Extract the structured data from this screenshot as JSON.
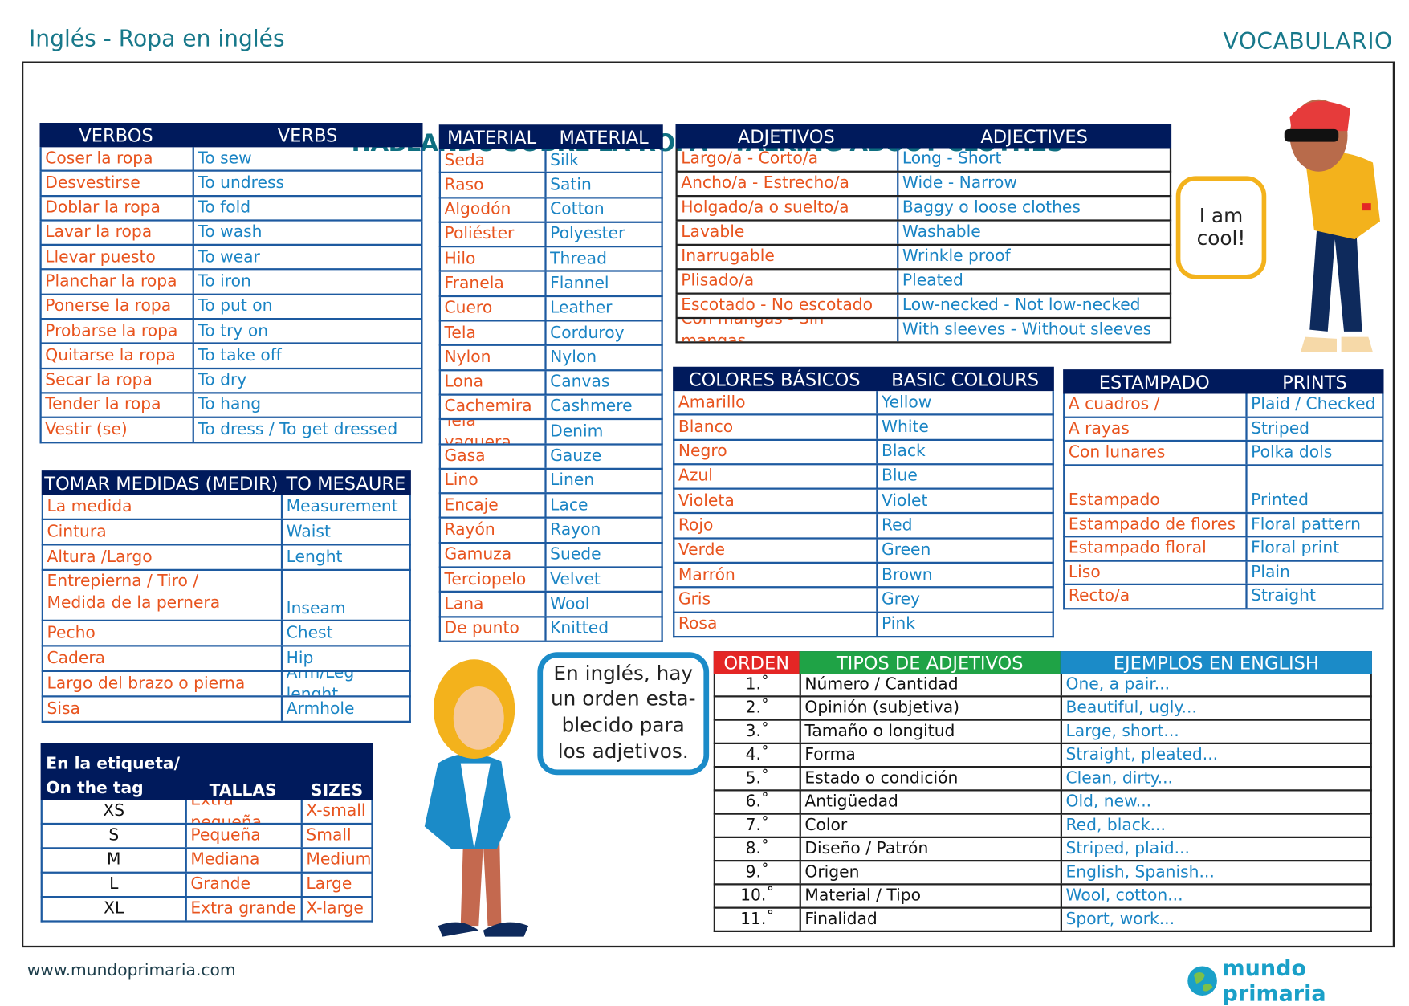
{
  "header": {
    "subject": "Inglés - Ropa en inglés",
    "section": "VOCABULARIO",
    "title": "HABLANDO SOBRE LA ROPA - TALKING ABOUT CLOTHES"
  },
  "colors": {
    "navy": "#001a5c",
    "spanish": "#e8541e",
    "english": "#1a84c4",
    "teal": "#17788a",
    "orden": "#e42625",
    "tipos": "#1fa346",
    "ejemplos": "#1b8bc8"
  },
  "verbs": {
    "headers": [
      "VERBOS",
      "VERBS"
    ],
    "rows": [
      [
        "Coser la ropa",
        "To sew"
      ],
      [
        "Desvestirse",
        "To undress"
      ],
      [
        "Doblar la ropa",
        "To fold"
      ],
      [
        "Lavar la ropa",
        "To wash"
      ],
      [
        "Llevar puesto",
        "To wear"
      ],
      [
        "Planchar la ropa",
        "To iron"
      ],
      [
        "Ponerse la ropa",
        "To put on"
      ],
      [
        "Probarse la ropa",
        "To try on"
      ],
      [
        "Quitarse la ropa",
        "To take off"
      ],
      [
        "Secar la ropa",
        "To dry"
      ],
      [
        "Tender la ropa",
        "To hang"
      ],
      [
        "Vestir (se)",
        "To dress / To get dressed"
      ]
    ]
  },
  "material": {
    "headers": [
      "MATERIAL",
      "MATERIAL"
    ],
    "rows": [
      [
        "Seda",
        "Silk"
      ],
      [
        "Raso",
        "Satin"
      ],
      [
        "Algodón",
        "Cotton"
      ],
      [
        "Poliéster",
        "Polyester"
      ],
      [
        "Hilo",
        "Thread"
      ],
      [
        "Franela",
        "Flannel"
      ],
      [
        "Cuero",
        "Leather"
      ],
      [
        "Tela",
        "Corduroy"
      ],
      [
        "Nylon",
        "Nylon"
      ],
      [
        "Lona",
        "Canvas"
      ],
      [
        "Cachemira",
        "Cashmere"
      ],
      [
        "Tela vaquera",
        "Denim"
      ],
      [
        "Gasa",
        "Gauze"
      ],
      [
        "Lino",
        "Linen"
      ],
      [
        "Encaje",
        "Lace"
      ],
      [
        "Rayón",
        "Rayon"
      ],
      [
        "Gamuza",
        "Suede"
      ],
      [
        "Terciopelo",
        "Velvet"
      ],
      [
        "Lana",
        "Wool"
      ],
      [
        "De punto",
        "Knitted"
      ]
    ]
  },
  "adjectives": {
    "headers": [
      "ADJETIVOS",
      "ADJECTIVES"
    ],
    "rows": [
      [
        "Largo/a - Corto/a",
        "Long - Short"
      ],
      [
        "Ancho/a - Estrecho/a",
        "Wide - Narrow"
      ],
      [
        "Holgado/a o suelto/a",
        "Baggy o loose clothes"
      ],
      [
        "Lavable",
        "Washable"
      ],
      [
        "Inarrugable",
        "Wrinkle proof"
      ],
      [
        "Plisado/a",
        "Pleated"
      ],
      [
        "Escotado - No escotado",
        "Low-necked - Not low-necked"
      ],
      [
        "Con mangas - Sin mangas",
        "With sleeves - Without sleeves"
      ]
    ]
  },
  "colours": {
    "headers": [
      "COLORES BÁSICOS",
      "BASIC COLOURS"
    ],
    "rows": [
      [
        "Amarillo",
        "Yellow"
      ],
      [
        "Blanco",
        "White"
      ],
      [
        "Negro",
        "Black"
      ],
      [
        "Azul",
        "Blue"
      ],
      [
        "Violeta",
        "Violet"
      ],
      [
        "Rojo",
        "Red"
      ],
      [
        "Verde",
        "Green"
      ],
      [
        "Marrón",
        "Brown"
      ],
      [
        "Gris",
        "Grey"
      ],
      [
        "Rosa",
        "Pink"
      ]
    ]
  },
  "prints": {
    "headers": [
      "ESTAMPADO",
      "PRINTS"
    ],
    "rows": [
      [
        "A cuadros /",
        "Plaid / Checked"
      ],
      [
        "A rayas",
        "Striped"
      ],
      [
        "Con lunares",
        "Polka dols"
      ],
      [
        "Estampado",
        "Printed"
      ],
      [
        "Estampado de flores",
        "Floral pattern"
      ],
      [
        "Estampado floral",
        "Floral print"
      ],
      [
        "Liso",
        "Plain"
      ],
      [
        "Recto/a",
        "Straight"
      ]
    ]
  },
  "measures": {
    "headers": [
      "TOMAR MEDIDAS (MEDIR)",
      "TO MESAURE"
    ],
    "rows": [
      [
        "La medida",
        "Measurement"
      ],
      [
        "Cintura",
        "Waist"
      ],
      [
        "Altura /Largo",
        "Lenght"
      ],
      [
        "Entrepierna / Tiro /\nMedida de la pernera",
        "Inseam"
      ],
      [
        "Pecho",
        "Chest"
      ],
      [
        "Cadera",
        "Hip"
      ],
      [
        "Largo del brazo o pierna",
        "Arm/Leg lenght"
      ],
      [
        "Sisa",
        "Armhole"
      ]
    ]
  },
  "sizes": {
    "headers": [
      "En la etiqueta/\nOn the tag",
      "TALLAS",
      "SIZES"
    ],
    "rows": [
      [
        "XS",
        "Extra pequeña",
        "X-small"
      ],
      [
        "S",
        "Pequeña",
        "Small"
      ],
      [
        "M",
        "Mediana",
        "Medium"
      ],
      [
        "L",
        "Grande",
        "Large"
      ],
      [
        "XL",
        "Extra grande",
        "X-large"
      ]
    ]
  },
  "order": {
    "headers": [
      "ORDEN",
      "TIPOS DE ADJETIVOS",
      "EJEMPLOS EN ENGLISH"
    ],
    "rows": [
      [
        "1.˚",
        "Número / Cantidad",
        "One, a pair..."
      ],
      [
        "2.˚",
        "Opinión (subjetiva)",
        "Beautiful, ugly..."
      ],
      [
        "3.˚",
        "Tamaño o longitud",
        "Large, short..."
      ],
      [
        "4.˚",
        "Forma",
        "Straight, pleated..."
      ],
      [
        "5.˚",
        "Estado o condición",
        "Clean, dirty..."
      ],
      [
        "6.˚",
        "Antigüedad",
        "Old, new..."
      ],
      [
        "7.˚",
        "Color",
        "Red, black..."
      ],
      [
        "8.˚",
        "Diseño / Patrón",
        "Striped, plaid..."
      ],
      [
        "9.˚",
        "Origen",
        "English, Spanish..."
      ],
      [
        "10.˚",
        "Material / Tipo",
        "Wool, cotton..."
      ],
      [
        "11.˚",
        "Finalidad",
        "Sport, work..."
      ]
    ]
  },
  "bubbles": {
    "cool": "I am\ncool!",
    "order": "En inglés, hay\nun orden esta-\nblecido para\nlos adjetivos."
  },
  "footer": {
    "url": "www.mundoprimaria.com",
    "logo": "mundo primaria"
  }
}
